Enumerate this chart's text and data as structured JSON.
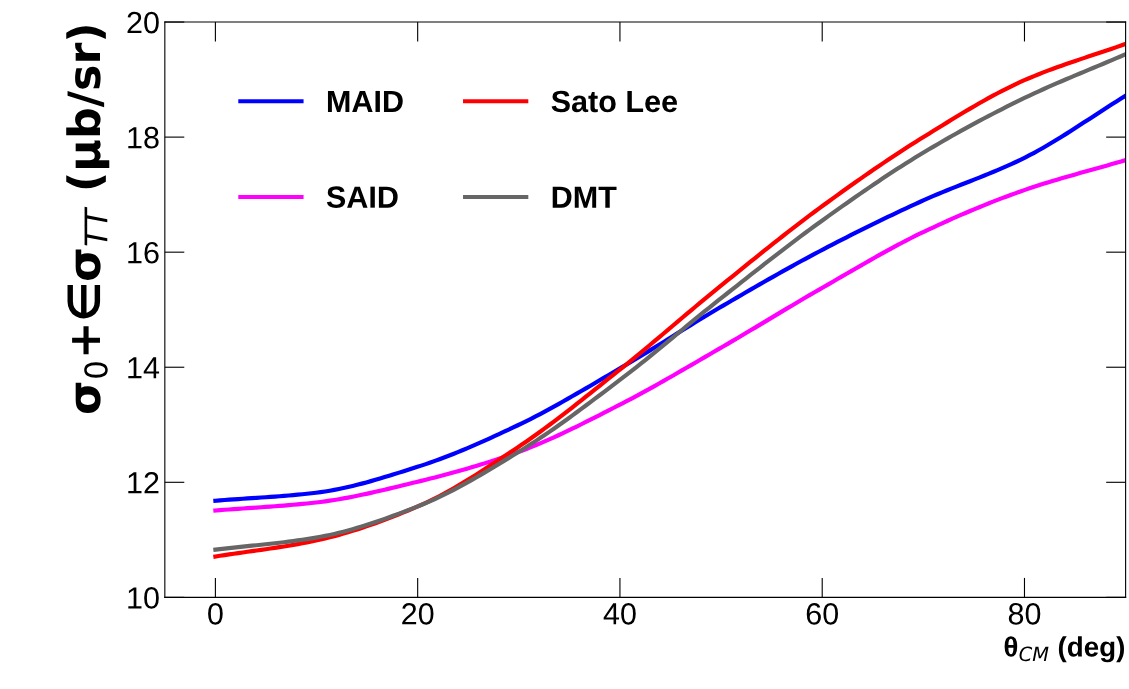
{
  "chart_data": {
    "type": "line",
    "xlabel": "θ$_{CM}$ (deg)",
    "ylabel": "σ$_{0}$+∈σ$_{TT}$ (μb/sr)",
    "x": [
      0,
      10,
      20,
      30,
      40,
      50,
      60,
      70,
      80,
      90
    ],
    "xlim": [
      -5,
      90
    ],
    "xticks": [
      0,
      20,
      40,
      60,
      80
    ],
    "ylim": [
      10,
      20
    ],
    "yticks": [
      10,
      12,
      14,
      16,
      18,
      20
    ],
    "grid": false,
    "legend": "top left",
    "marker": "none",
    "line_style": "solid",
    "series": [
      {
        "name": "MAID",
        "color": "#0000ff",
        "values": [
          11.68,
          11.82,
          12.27,
          13.0,
          13.98,
          15.05,
          16.04,
          16.9,
          17.64,
          18.72
        ]
      },
      {
        "name": "SAID",
        "color": "#ff00ff",
        "values": [
          11.51,
          11.65,
          12.01,
          12.53,
          13.35,
          14.34,
          15.38,
          16.35,
          17.08,
          17.6
        ]
      },
      {
        "name": "Sato Lee",
        "color": "#ff0000",
        "values": [
          10.71,
          10.99,
          11.58,
          12.62,
          13.96,
          15.42,
          16.8,
          18.0,
          18.99,
          19.62
        ]
      },
      {
        "name": "DMT",
        "color": "#666666",
        "values": [
          10.83,
          11.04,
          11.58,
          12.53,
          13.78,
          15.2,
          16.55,
          17.73,
          18.68,
          19.44
        ]
      }
    ]
  }
}
